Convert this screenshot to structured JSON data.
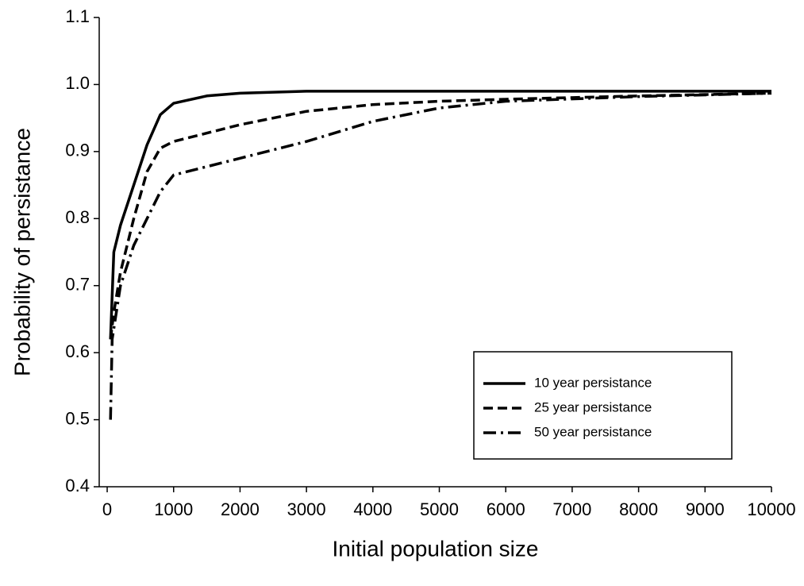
{
  "chart_data": {
    "type": "line",
    "x_label": "Initial population size",
    "y_label": "Probability of persistance",
    "xlim": [
      -120,
      10000
    ],
    "xticks": [
      0,
      1000,
      2000,
      3000,
      4000,
      5000,
      6000,
      7000,
      8000,
      9000,
      10000
    ],
    "ylim": [
      0.4,
      1.1
    ],
    "yticks": [
      0.4,
      0.5,
      0.6,
      0.7,
      0.8,
      0.9,
      {
        "value": 1,
        "label": "1.0"
      },
      1.1
    ],
    "legend": "lower right",
    "grid": false,
    "series": [
      {
        "name": "10 year persistance",
        "color": "#000000",
        "dash": "solid",
        "x": [
          50,
          100,
          200,
          400,
          600,
          800,
          1000,
          1500,
          2000,
          3000,
          10000
        ],
        "values": [
          0.62,
          0.75,
          0.79,
          0.85,
          0.91,
          0.955,
          0.972,
          0.983,
          0.987,
          0.99,
          0.99
        ]
      },
      {
        "name": "25 year persistance",
        "color": "#000000",
        "dash": "dashed",
        "x": [
          50,
          100,
          200,
          400,
          600,
          800,
          1000,
          2000,
          3000,
          4000,
          5000,
          6000,
          8000,
          10000
        ],
        "values": [
          0.62,
          0.66,
          0.72,
          0.8,
          0.87,
          0.905,
          0.915,
          0.94,
          0.96,
          0.97,
          0.975,
          0.978,
          0.983,
          0.987
        ]
      },
      {
        "name": "50 year persistance",
        "color": "#000000",
        "dash": "dash-dot",
        "x": [
          50,
          75,
          200,
          400,
          600,
          800,
          1000,
          2000,
          3000,
          4000,
          5000,
          6000,
          8000,
          10000
        ],
        "values": [
          0.5,
          0.62,
          0.7,
          0.76,
          0.8,
          0.84,
          0.865,
          0.89,
          0.915,
          0.945,
          0.965,
          0.975,
          0.982,
          0.987
        ]
      }
    ]
  }
}
